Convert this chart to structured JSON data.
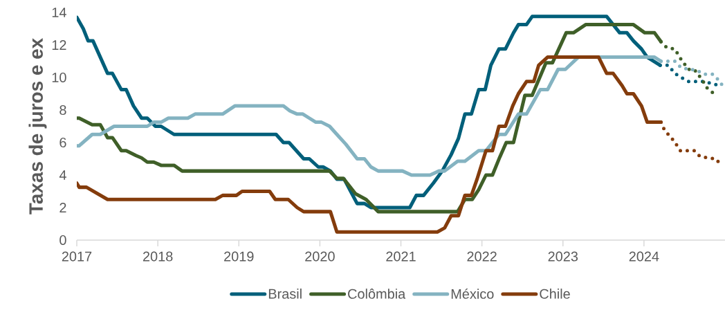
{
  "chart_data": {
    "type": "line",
    "ylabel": "Taxas de juros e ex",
    "xlim": [
      2017,
      2025
    ],
    "xticks": [
      2017,
      2018,
      2019,
      2020,
      2021,
      2022,
      2023,
      2024
    ],
    "ylim": [
      0,
      14
    ],
    "yticks": [
      0,
      2,
      4,
      6,
      8,
      10,
      12,
      14
    ],
    "legend": "bottom",
    "series": [
      {
        "name": "Brasil",
        "color": "#005f7a",
        "x": [
          2017.0,
          2017.08,
          2017.14,
          2017.2,
          2017.38,
          2017.44,
          2017.55,
          2017.61,
          2017.7,
          2017.8,
          2017.87,
          2017.97,
          2018.04,
          2018.2,
          2019.46,
          2019.55,
          2019.62,
          2019.8,
          2019.87,
          2019.98,
          2020.04,
          2020.13,
          2020.21,
          2020.3,
          2020.46,
          2020.55,
          2020.63,
          2021.11,
          2021.19,
          2021.28,
          2021.4,
          2021.51,
          2021.62,
          2021.71,
          2021.79,
          2021.87,
          2021.96,
          2022.04,
          2022.11,
          2022.21,
          2022.29,
          2022.39,
          2022.45,
          2022.55,
          2022.62,
          2023.54,
          2023.7,
          2023.79,
          2023.87,
          2023.97,
          2024.04,
          2024.2
        ],
        "values": [
          13.7,
          13.0,
          12.25,
          12.25,
          10.25,
          10.25,
          9.25,
          9.25,
          8.25,
          7.5,
          7.5,
          7.0,
          7.0,
          6.5,
          6.5,
          6.0,
          6.0,
          5.0,
          5.0,
          4.5,
          4.5,
          4.25,
          3.75,
          3.75,
          2.25,
          2.25,
          2.0,
          2.0,
          2.75,
          2.75,
          3.5,
          4.25,
          5.25,
          6.25,
          7.75,
          7.75,
          9.25,
          9.25,
          10.75,
          11.75,
          11.75,
          12.75,
          13.25,
          13.25,
          13.75,
          13.75,
          12.75,
          12.75,
          12.25,
          11.75,
          11.25,
          10.75
        ]
      },
      {
        "name": "Colômbia",
        "color": "#3f5f28",
        "x": [
          2017.0,
          2017.03,
          2017.19,
          2017.29,
          2017.38,
          2017.44,
          2017.55,
          2017.61,
          2017.73,
          2017.8,
          2017.87,
          2017.95,
          2018.04,
          2018.2,
          2018.3,
          2020.12,
          2020.21,
          2020.29,
          2020.44,
          2020.57,
          2020.72,
          2021.7,
          2021.79,
          2021.88,
          2021.96,
          2022.05,
          2022.13,
          2022.22,
          2022.3,
          2022.39,
          2022.53,
          2022.62,
          2022.79,
          2022.87,
          2023.04,
          2023.13,
          2023.28,
          2023.87,
          2024.01,
          2024.13,
          2024.21
        ],
        "values": [
          7.5,
          7.5,
          7.1,
          7.1,
          6.3,
          6.3,
          5.5,
          5.5,
          5.2,
          5.05,
          4.8,
          4.8,
          4.6,
          4.6,
          4.25,
          4.25,
          3.8,
          3.8,
          2.85,
          2.5,
          1.75,
          1.75,
          2.5,
          2.5,
          3.1,
          4.0,
          4.0,
          5.1,
          6.0,
          6.0,
          8.9,
          8.9,
          10.9,
          10.9,
          12.75,
          12.75,
          13.25,
          13.25,
          12.75,
          12.75,
          12.2
        ]
      },
      {
        "name": "México",
        "color": "#84b3c1",
        "x": [
          2017.0,
          2017.03,
          2017.19,
          2017.29,
          2017.46,
          2017.87,
          2017.95,
          2018.04,
          2018.13,
          2018.37,
          2018.46,
          2018.8,
          2018.95,
          2019.55,
          2019.63,
          2019.72,
          2019.79,
          2019.87,
          2019.95,
          2020.02,
          2020.12,
          2020.21,
          2020.32,
          2020.46,
          2020.55,
          2020.63,
          2020.72,
          2021.02,
          2021.13,
          2021.36,
          2021.47,
          2021.54,
          2021.7,
          2021.79,
          2021.96,
          2022.05,
          2022.21,
          2022.29,
          2022.45,
          2022.55,
          2022.72,
          2022.81,
          2022.94,
          2023.03,
          2023.19,
          2024.13,
          2024.21
        ],
        "values": [
          5.8,
          5.8,
          6.5,
          6.5,
          7.0,
          7.0,
          7.25,
          7.25,
          7.5,
          7.5,
          7.75,
          7.75,
          8.25,
          8.25,
          7.95,
          7.75,
          7.75,
          7.5,
          7.25,
          7.25,
          7.0,
          6.5,
          5.9,
          5.0,
          5.0,
          4.5,
          4.25,
          4.25,
          4.0,
          4.0,
          4.25,
          4.25,
          4.85,
          4.85,
          5.5,
          5.5,
          6.5,
          6.5,
          7.75,
          7.75,
          9.25,
          9.25,
          10.5,
          10.5,
          11.25,
          11.25,
          11.0
        ]
      },
      {
        "name": "Chile",
        "color": "#843c0c",
        "x": [
          2017.0,
          2017.03,
          2017.12,
          2017.38,
          2018.71,
          2018.8,
          2018.97,
          2019.04,
          2019.38,
          2019.45,
          2019.61,
          2019.72,
          2019.8,
          2020.13,
          2020.21,
          2021.45,
          2021.54,
          2021.62,
          2021.71,
          2021.79,
          2021.87,
          2021.94,
          2022.05,
          2022.13,
          2022.21,
          2022.29,
          2022.38,
          2022.45,
          2022.55,
          2022.64,
          2022.7,
          2022.81,
          2023.44,
          2023.54,
          2023.62,
          2023.73,
          2023.79,
          2023.87,
          2023.97,
          2024.04,
          2024.21
        ],
        "values": [
          3.5,
          3.25,
          3.25,
          2.5,
          2.5,
          2.75,
          2.75,
          3.0,
          3.0,
          2.5,
          2.5,
          2.0,
          1.75,
          1.75,
          0.5,
          0.5,
          0.75,
          1.5,
          1.5,
          2.75,
          2.75,
          3.75,
          5.5,
          5.5,
          7.0,
          7.0,
          8.25,
          9.0,
          9.75,
          9.75,
          10.75,
          11.25,
          11.25,
          10.25,
          10.25,
          9.5,
          9.0,
          9.0,
          8.25,
          7.25,
          7.25
        ]
      },
      {
        "color": "#005f7a",
        "line_style": "dotted",
        "x": [
          2024.2,
          2024.3,
          2024.38,
          2024.46,
          2024.55,
          2024.76,
          2024.85,
          2024.95
        ],
        "values": [
          10.75,
          10.75,
          10.25,
          10.0,
          9.75,
          9.75,
          9.6,
          9.5
        ]
      },
      {
        "color": "#3f5f28",
        "line_style": "dotted",
        "x": [
          2024.21,
          2024.28,
          2024.38,
          2024.46,
          2024.55,
          2024.62,
          2024.72,
          2024.77,
          2024.84,
          2024.91
        ],
        "values": [
          12.2,
          11.85,
          11.75,
          11.1,
          10.5,
          10.5,
          9.85,
          9.4,
          9.1,
          8.85
        ]
      },
      {
        "color": "#84b3c1",
        "line_style": "dotted",
        "x": [
          2024.21,
          2024.38,
          2024.46,
          2024.56,
          2024.65,
          2024.74,
          2024.85,
          2024.91,
          2024.97
        ],
        "values": [
          11.0,
          11.0,
          10.6,
          10.5,
          10.45,
          10.2,
          10.2,
          9.9,
          9.5
        ]
      },
      {
        "color": "#843c0c",
        "line_style": "dotted",
        "x": [
          2024.21,
          2024.25,
          2024.3,
          2024.37,
          2024.45,
          2024.62,
          2024.69,
          2024.79,
          2024.89,
          2024.95
        ],
        "values": [
          7.25,
          6.8,
          6.5,
          6.1,
          5.5,
          5.5,
          5.15,
          5.05,
          5.0,
          4.6
        ]
      }
    ]
  }
}
